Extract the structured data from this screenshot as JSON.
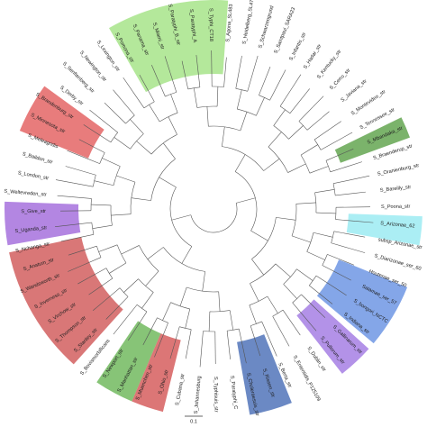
{
  "tree": {
    "leaves": [
      "S_Paratyphi_B_str",
      "S_Paratyphi_A",
      "S_Typhi_CT18",
      "S_Agona_SL483",
      "S_Heidelberg_SL476",
      "S_Schwarzengrund",
      "S_Saintpaul_SARA23",
      "S_Infantis_str",
      "S_Hadar_str",
      "S_Kentucky_str",
      "S_Cerro_str",
      "S_Javiana_str",
      "S_Montevideo_str",
      "S_Tennessee_str",
      "S_Mbandaka_str",
      "S_Braenderup_str",
      "S_Oranienburg_str",
      "S_Bareilly_str",
      "S_Poona_str",
      "S_Arizonae_62",
      "subsp_Arizonae_str",
      "S_Diarizonae_ser_60",
      "Houtenae_ser_50",
      "Salamae_ser_57",
      "S_bongori_NCTC",
      "S_Indiana_str",
      "S_Gallinarum_str",
      "S_Pullorum_str",
      "S_Dublin_str",
      "S_Enteritidis_P125109",
      "S_Berta_str",
      "S_Rissen_str",
      "S_Choleraesuis_str",
      "S_Paratyphi_C",
      "S_Typhisuis_str",
      "S_Johannesburg",
      "S_Cubana_str",
      "S_Ohio_str",
      "S_Muenchen_str",
      "S_Manhattan_str",
      "S_Newport_str",
      "S_Bovismorbificans",
      "S_Stanley_str",
      "S_Thompson_str",
      "S_Virchow_str",
      "S_Inverness_str",
      "S_Wandsworth_str",
      "S_Anatum_str",
      "S_Nchanga_str",
      "S_Uganda_str",
      "S_Give_str",
      "S_Weltevreden_str",
      "S_London_str",
      "S_Baildon_str",
      "S_Meleagridis",
      "S_Minnesota_str",
      "S_Brandenburg_str",
      "S_Derby_str",
      "S_Senftenberg_str",
      "S_Newington_str",
      "S_Lexington_str",
      "S_Pomona_str",
      "S_Panama_str",
      "S_Miami_str"
    ],
    "scale_label": "0.1"
  }
}
